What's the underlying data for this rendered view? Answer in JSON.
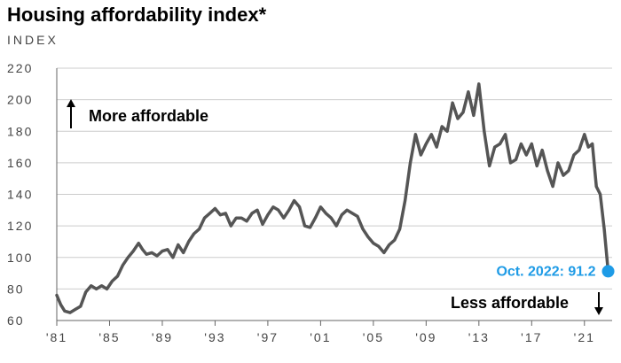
{
  "title": "Housing affordability index*",
  "chart_data": {
    "type": "line",
    "ylabel": "INDEX",
    "ylim": [
      60,
      220
    ],
    "yticks": [
      60,
      80,
      100,
      120,
      140,
      160,
      180,
      200,
      220
    ],
    "ytick_labels": [
      "60",
      "80",
      "100",
      "120",
      "140",
      "160",
      "180",
      "200",
      "220"
    ],
    "xlim": [
      1981,
      2023.1
    ],
    "xticks": [
      1981,
      1985,
      1989,
      1993,
      1997,
      2001,
      2005,
      2009,
      2013,
      2017,
      2021
    ],
    "xtick_labels": [
      "'81",
      "'85",
      "'89",
      "'93",
      "'97",
      "'01",
      "'05",
      "'09",
      "'13",
      "'17",
      "'21"
    ],
    "grid": "horizontal",
    "annotations": {
      "up": "More affordable",
      "down": "Less affordable",
      "callout": "Oct. 2022: 91.2"
    },
    "colors": {
      "line": "#555555",
      "grid": "#cccccc",
      "callout": "#1e9be6"
    },
    "series": [
      {
        "x": [
          1981.0,
          1981.3,
          1981.6,
          1982.0,
          1982.4,
          1982.8,
          1983.2,
          1983.6,
          1984.0,
          1984.4,
          1984.8,
          1985.2,
          1985.6,
          1986.0,
          1986.4,
          1986.8,
          1987.2,
          1987.5,
          1987.8,
          1988.2,
          1988.6,
          1989.0,
          1989.4,
          1989.8,
          1990.2,
          1990.6,
          1991.0,
          1991.4,
          1991.8,
          1992.2,
          1992.6,
          1993.0,
          1993.4,
          1993.8,
          1994.2,
          1994.6,
          1995.0,
          1995.4,
          1995.8,
          1996.2,
          1996.6,
          1997.0,
          1997.4,
          1997.8,
          1998.2,
          1998.6,
          1999.0,
          1999.4,
          1999.8,
          2000.2,
          2000.6,
          2001.0,
          2001.4,
          2001.8,
          2002.2,
          2002.6,
          2003.0,
          2003.4,
          2003.8,
          2004.2,
          2004.6,
          2005.0,
          2005.4,
          2005.8,
          2006.2,
          2006.6,
          2007.0,
          2007.4,
          2007.8,
          2008.2,
          2008.6,
          2009.0,
          2009.4,
          2009.8,
          2010.2,
          2010.6,
          2011.0,
          2011.4,
          2011.8,
          2012.2,
          2012.6,
          2013.0,
          2013.4,
          2013.8,
          2014.2,
          2014.6,
          2015.0,
          2015.4,
          2015.8,
          2016.2,
          2016.6,
          2017.0,
          2017.4,
          2017.8,
          2018.2,
          2018.6,
          2019.0,
          2019.4,
          2019.8,
          2020.2,
          2020.6,
          2021.0,
          2021.3,
          2021.6,
          2021.9,
          2022.2,
          2022.5,
          2022.8
        ],
        "values": [
          76,
          70,
          66,
          65,
          67,
          69,
          78,
          82,
          80,
          82,
          80,
          85,
          88,
          95,
          100,
          104,
          109,
          105,
          102,
          103,
          101,
          104,
          105,
          100,
          108,
          103,
          110,
          115,
          118,
          125,
          128,
          131,
          127,
          128,
          120,
          125,
          125,
          123,
          128,
          130,
          121,
          127,
          132,
          130,
          125,
          130,
          136,
          132,
          120,
          119,
          125,
          132,
          128,
          125,
          120,
          127,
          130,
          128,
          126,
          118,
          113,
          109,
          107,
          103,
          108,
          111,
          118,
          136,
          160,
          178,
          165,
          172,
          178,
          170,
          183,
          180,
          198,
          188,
          192,
          205,
          190,
          210,
          180,
          158,
          170,
          172,
          178,
          160,
          162,
          172,
          165,
          172,
          158,
          168,
          155,
          145,
          160,
          152,
          155,
          165,
          168,
          178,
          170,
          172,
          145,
          140,
          118,
          91.2
        ]
      }
    ]
  }
}
